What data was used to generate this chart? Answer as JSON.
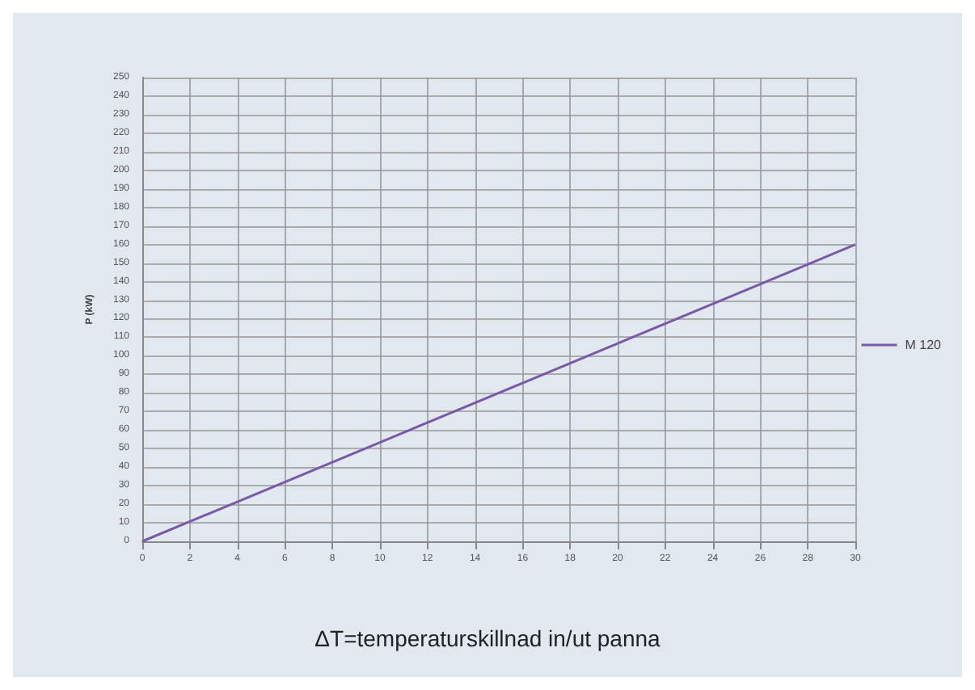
{
  "chart_data": {
    "type": "line",
    "ylabel": "P (kW)",
    "annotations": [
      "ΔT=temperaturskillnad in/ut panna"
    ],
    "x": [
      0,
      30
    ],
    "series": [
      {
        "name": "M 120",
        "color": "#7b58a8",
        "values": [
          0,
          160
        ]
      }
    ],
    "xlim": [
      0,
      30
    ],
    "xticks": [
      0,
      2,
      4,
      6,
      8,
      10,
      12,
      14,
      16,
      18,
      20,
      22,
      24,
      26,
      28,
      30
    ],
    "ylim": [
      0,
      250
    ],
    "yticks": [
      0,
      10,
      20,
      30,
      40,
      50,
      60,
      70,
      80,
      90,
      100,
      110,
      120,
      130,
      140,
      150,
      160,
      170,
      180,
      190,
      200,
      210,
      220,
      230,
      240,
      250
    ],
    "grid": true,
    "legend": "right",
    "marker": "none",
    "line_style": "solid"
  }
}
